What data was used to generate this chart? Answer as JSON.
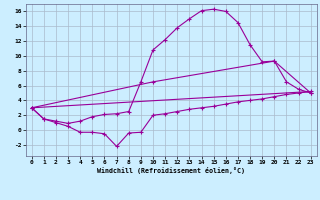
{
  "xlabel": "Windchill (Refroidissement éolien,°C)",
  "background_color": "#cceeff",
  "grid_color": "#aabbcc",
  "line_color": "#990099",
  "x_ticks": [
    0,
    1,
    2,
    3,
    4,
    5,
    6,
    7,
    8,
    9,
    10,
    11,
    12,
    13,
    14,
    15,
    16,
    17,
    18,
    19,
    20,
    21,
    22,
    23
  ],
  "y_ticks": [
    -2,
    0,
    2,
    4,
    6,
    8,
    10,
    12,
    14,
    16
  ],
  "xlim": [
    -0.5,
    23.5
  ],
  "ylim": [
    -3.5,
    17.0
  ],
  "curve1_x": [
    0,
    1,
    2,
    3,
    4,
    5,
    6,
    7,
    8,
    9,
    10,
    11,
    12,
    13,
    14,
    15,
    16,
    17,
    18,
    19,
    20,
    21,
    22,
    23
  ],
  "curve1_y": [
    3.0,
    1.5,
    1.0,
    0.5,
    -0.3,
    -0.3,
    -0.5,
    -2.2,
    -0.4,
    -0.3,
    2.0,
    2.2,
    2.5,
    2.8,
    3.0,
    3.2,
    3.5,
    3.8,
    4.0,
    4.2,
    4.5,
    4.8,
    5.0,
    5.2
  ],
  "curve2_x": [
    0,
    1,
    2,
    3,
    4,
    5,
    6,
    7,
    8,
    9,
    10,
    11,
    12,
    13,
    14,
    15,
    16,
    17,
    18,
    19,
    20,
    21,
    22,
    23
  ],
  "curve2_y": [
    3.0,
    1.5,
    1.2,
    0.9,
    1.2,
    1.8,
    2.1,
    2.2,
    2.5,
    6.5,
    10.8,
    12.2,
    13.8,
    15.0,
    16.1,
    16.3,
    16.0,
    14.5,
    11.5,
    9.2,
    9.3,
    6.5,
    5.5,
    5.0
  ],
  "line3_x": [
    0,
    23
  ],
  "line3_y": [
    3.0,
    5.2
  ],
  "line4_x": [
    0,
    10,
    20,
    23
  ],
  "line4_y": [
    3.0,
    6.5,
    9.3,
    5.0
  ],
  "label_fontsize": 4.5,
  "xlabel_fontsize": 4.8
}
